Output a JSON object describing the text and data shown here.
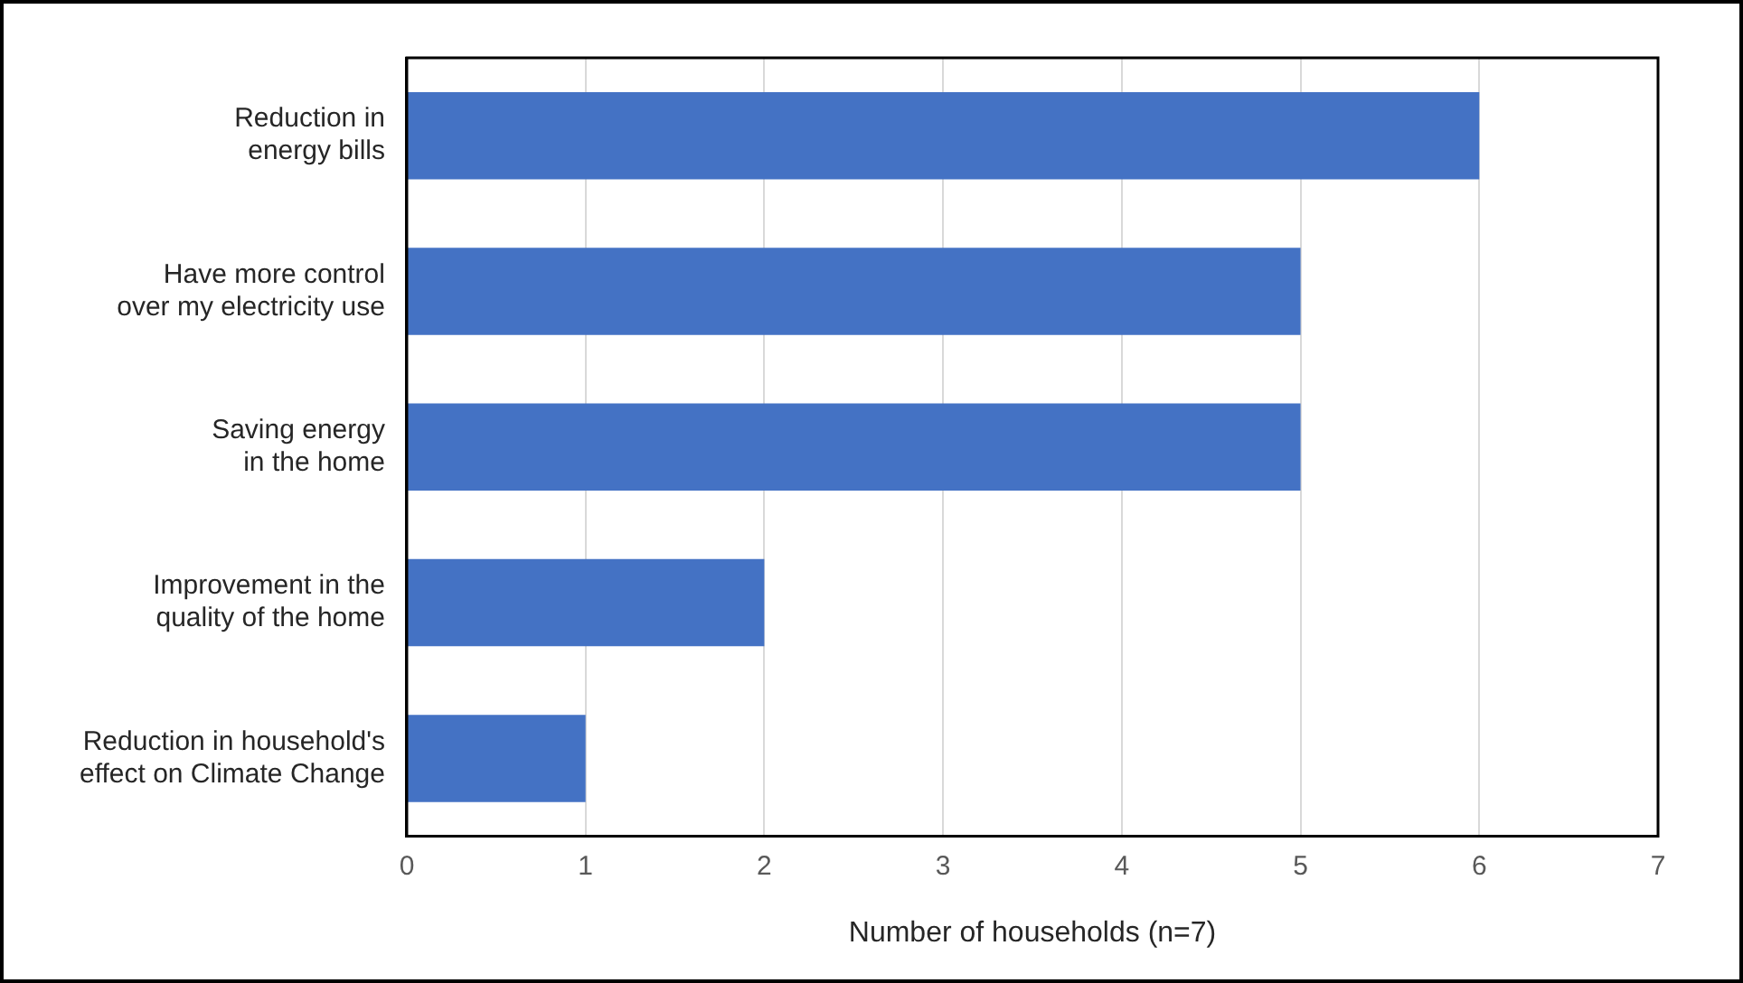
{
  "chart_data": {
    "type": "bar",
    "orientation": "horizontal",
    "xlabel": "Number of households (n=7)",
    "categories": [
      "Reduction in\nenergy bills",
      "Have more control\nover my electricity use",
      "Saving energy\nin the home",
      "Improvement in the\nquality of the home",
      "Reduction in household's\neffect on Climate Change"
    ],
    "values": [
      6,
      5,
      5,
      2,
      1
    ],
    "color": "#4472c4",
    "xlim": [
      0,
      7
    ],
    "xticks": [
      0,
      1,
      2,
      3,
      4,
      5,
      6,
      7
    ],
    "grid": "x",
    "legend": false
  }
}
